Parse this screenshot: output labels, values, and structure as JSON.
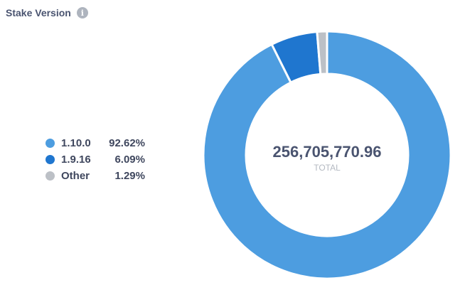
{
  "header": {
    "title": "Stake Version",
    "info_icon": "info-icon"
  },
  "chart_data": {
    "type": "pie",
    "donut": true,
    "categories": [
      "1.10.0",
      "1.9.16",
      "Other"
    ],
    "values": [
      92.62,
      6.09,
      1.29
    ],
    "percent_labels": [
      "92.62%",
      "6.09%",
      "1.29%"
    ],
    "colors": [
      "#4d9de0",
      "#1f76cf",
      "#bcc0c6"
    ],
    "legend_position": "left",
    "center_value": "256,705,770.96",
    "center_label": "TOTAL"
  }
}
